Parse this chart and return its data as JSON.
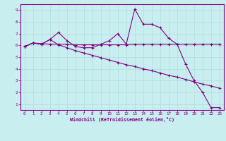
{
  "title": "",
  "xlabel": "Windchill (Refroidissement éolien,°C)",
  "background_color": "#c8eef0",
  "line_color": "#800080",
  "grid_color": "#b0dde0",
  "x_ticks": [
    0,
    1,
    2,
    3,
    4,
    5,
    6,
    7,
    8,
    9,
    10,
    11,
    12,
    13,
    14,
    15,
    16,
    17,
    18,
    19,
    20,
    21,
    22,
    23
  ],
  "y_ticks": [
    1,
    2,
    3,
    4,
    5,
    6,
    7,
    8,
    9
  ],
  "xlim": [
    -0.5,
    23.5
  ],
  "ylim": [
    0.5,
    9.5
  ],
  "line1_x": [
    0,
    1,
    2,
    3,
    4,
    5,
    6,
    7,
    8,
    9,
    10,
    11,
    12,
    13,
    14,
    15,
    16,
    17,
    18,
    19,
    20,
    21,
    22,
    23
  ],
  "line1_y": [
    5.9,
    6.2,
    6.1,
    6.5,
    7.1,
    6.4,
    5.9,
    5.8,
    5.8,
    6.1,
    6.4,
    7.0,
    6.1,
    9.1,
    7.8,
    7.8,
    7.5,
    6.6,
    6.1,
    4.4,
    3.0,
    2.0,
    0.7,
    0.7
  ],
  "line2_x": [
    0,
    1,
    2,
    3,
    4,
    5,
    6,
    7,
    8,
    9,
    10,
    11,
    12,
    13,
    14,
    15,
    16,
    17,
    18,
    19,
    20,
    21,
    22,
    23
  ],
  "line2_y": [
    5.9,
    6.2,
    6.15,
    6.1,
    6.1,
    6.1,
    6.05,
    6.05,
    6.05,
    6.05,
    6.05,
    6.05,
    6.05,
    6.1,
    6.1,
    6.1,
    6.1,
    6.1,
    6.1,
    6.1,
    6.1,
    6.1,
    6.1,
    6.1
  ],
  "line3_x": [
    0,
    1,
    2,
    3,
    4,
    5,
    6,
    7,
    8,
    9,
    10,
    11,
    12,
    13,
    14,
    15,
    16,
    17,
    18,
    19,
    20,
    21,
    22,
    23
  ],
  "line3_y": [
    5.9,
    6.2,
    6.1,
    6.5,
    6.05,
    5.8,
    5.55,
    5.35,
    5.15,
    4.95,
    4.75,
    4.55,
    4.35,
    4.2,
    4.0,
    3.85,
    3.65,
    3.45,
    3.3,
    3.1,
    2.9,
    2.7,
    2.55,
    2.35
  ]
}
